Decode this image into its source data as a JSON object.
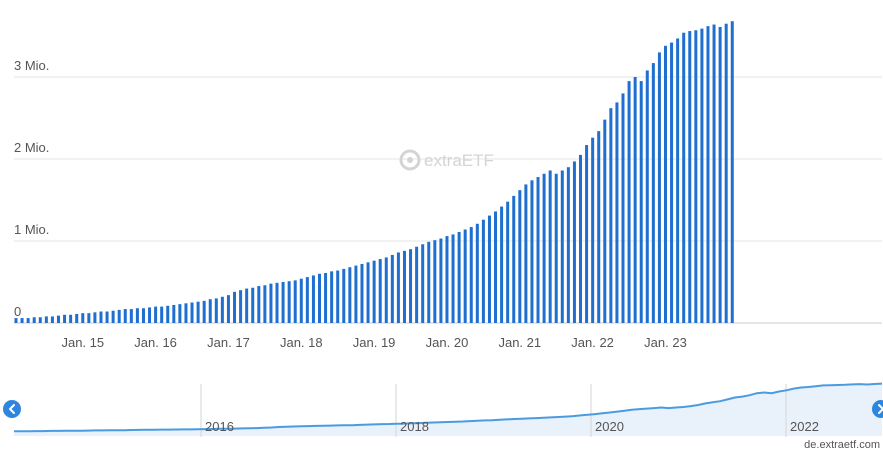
{
  "watermark": "extraETF",
  "credit": "de.extraetf.com",
  "colors": {
    "bar": "#1f6fd1",
    "grid": "#e6e6e6",
    "navigator_line": "#4a9be0",
    "navigator_fill": "#e9f1fb",
    "nav_button": "#2f86de"
  },
  "navigator": {
    "labels": [
      "2016",
      "2018",
      "2020",
      "2022"
    ],
    "left_button_icon": "chevron-left-icon",
    "right_button_icon": "chevron-right-icon"
  },
  "chart_data": {
    "type": "bar",
    "title": "",
    "xlabel": "",
    "ylabel": "",
    "ylim": [
      0,
      3800000
    ],
    "yticks": [
      0,
      1000000,
      2000000,
      3000000
    ],
    "ytick_labels": [
      "0",
      "1 Mio.",
      "2 Mio.",
      "3 Mio."
    ],
    "xtick_labels": [
      "Jan. 15",
      "Jan. 16",
      "Jan. 17",
      "Jan. 18",
      "Jan. 19",
      "Jan. 20",
      "Jan. 21",
      "Jan. 22",
      "Jan. 23"
    ],
    "xtick_dates": [
      "2015-01",
      "2016-01",
      "2017-01",
      "2018-01",
      "2019-01",
      "2020-01",
      "2021-01",
      "2022-01",
      "2023-01"
    ],
    "grid": true,
    "legend": "none",
    "x_start": "2014-02",
    "values": [
      60000,
      60000,
      60000,
      70000,
      70000,
      80000,
      80000,
      90000,
      100000,
      100000,
      110000,
      120000,
      120000,
      130000,
      140000,
      140000,
      150000,
      160000,
      170000,
      170000,
      180000,
      180000,
      190000,
      200000,
      200000,
      210000,
      220000,
      230000,
      240000,
      250000,
      260000,
      270000,
      290000,
      300000,
      320000,
      340000,
      380000,
      400000,
      420000,
      430000,
      450000,
      460000,
      480000,
      490000,
      500000,
      510000,
      520000,
      540000,
      560000,
      580000,
      600000,
      610000,
      630000,
      640000,
      660000,
      680000,
      700000,
      720000,
      740000,
      760000,
      780000,
      800000,
      830000,
      860000,
      880000,
      900000,
      930000,
      960000,
      990000,
      1010000,
      1030000,
      1060000,
      1080000,
      1110000,
      1140000,
      1170000,
      1210000,
      1260000,
      1310000,
      1360000,
      1420000,
      1480000,
      1550000,
      1620000,
      1690000,
      1740000,
      1780000,
      1820000,
      1860000,
      1820000,
      1860000,
      1900000,
      1970000,
      2050000,
      2170000,
      2260000,
      2340000,
      2480000,
      2620000,
      2690000,
      2800000,
      2950000,
      3000000,
      2950000,
      3080000,
      3170000,
      3300000,
      3380000,
      3420000,
      3470000,
      3540000,
      3560000,
      3570000,
      3590000,
      3620000,
      3640000,
      3610000,
      3650000,
      3680000
    ]
  }
}
